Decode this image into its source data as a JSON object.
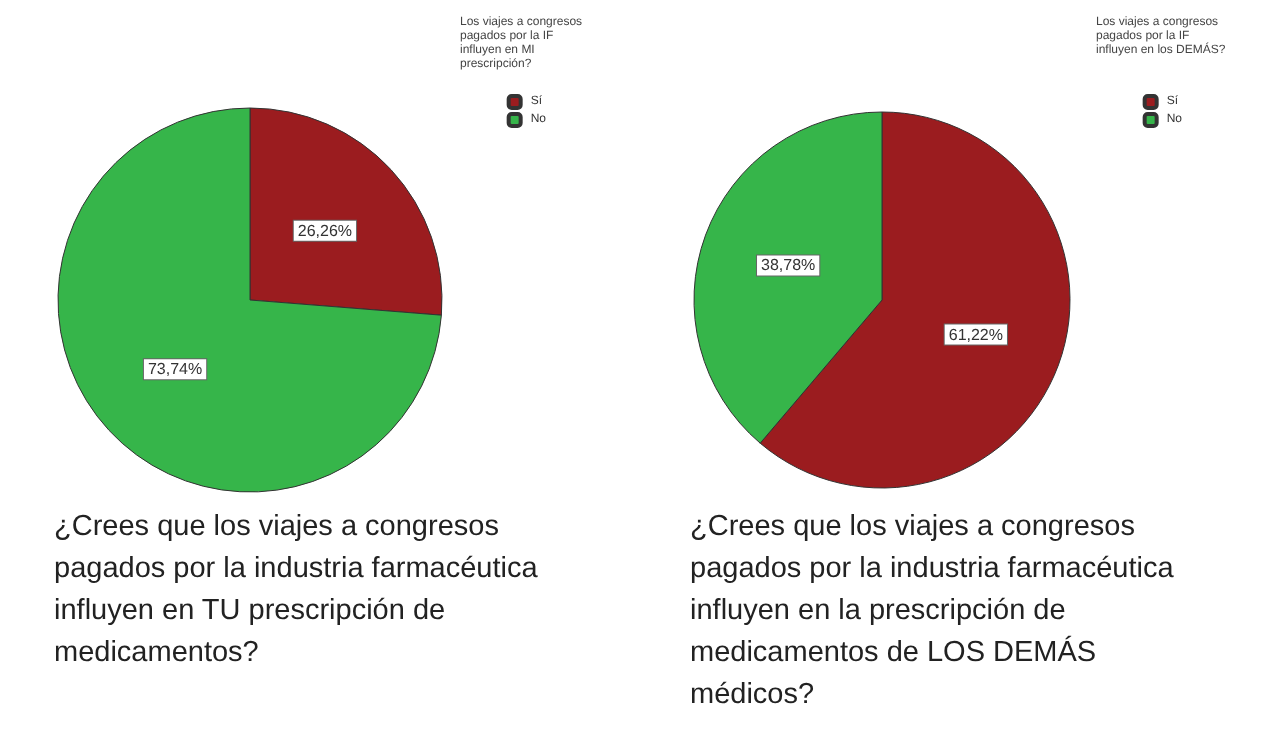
{
  "chart_data": [
    {
      "type": "pie",
      "title": "¿Crees que los viajes a congresos pagados por la industria farmacéutica influyen en TU prescripción de medicamentos?",
      "legend_title": "Los viajes a congresos pagados por la IF influyen en MI prescripción?",
      "categories": [
        "Sí",
        "No"
      ],
      "values": [
        26.26,
        73.74
      ],
      "colors": [
        "#9b1c1f",
        "#36b54a"
      ],
      "value_labels": [
        "26,26%",
        "73,74%"
      ],
      "legend": "top right"
    },
    {
      "type": "pie",
      "title": "¿Crees que los viajes a congresos pagados por la industria farmacéutica influyen en la prescripción de medicamentos de LOS DEMÁS médicos?",
      "legend_title": "Los viajes a congresos pagados por la IF influyen en los DEMÁS?",
      "categories": [
        "Sí",
        "No"
      ],
      "values": [
        61.22,
        38.78
      ],
      "colors": [
        "#9b1c1f",
        "#36b54a"
      ],
      "value_labels": [
        "61,22%",
        "38,78%"
      ],
      "legend": "top right"
    }
  ]
}
